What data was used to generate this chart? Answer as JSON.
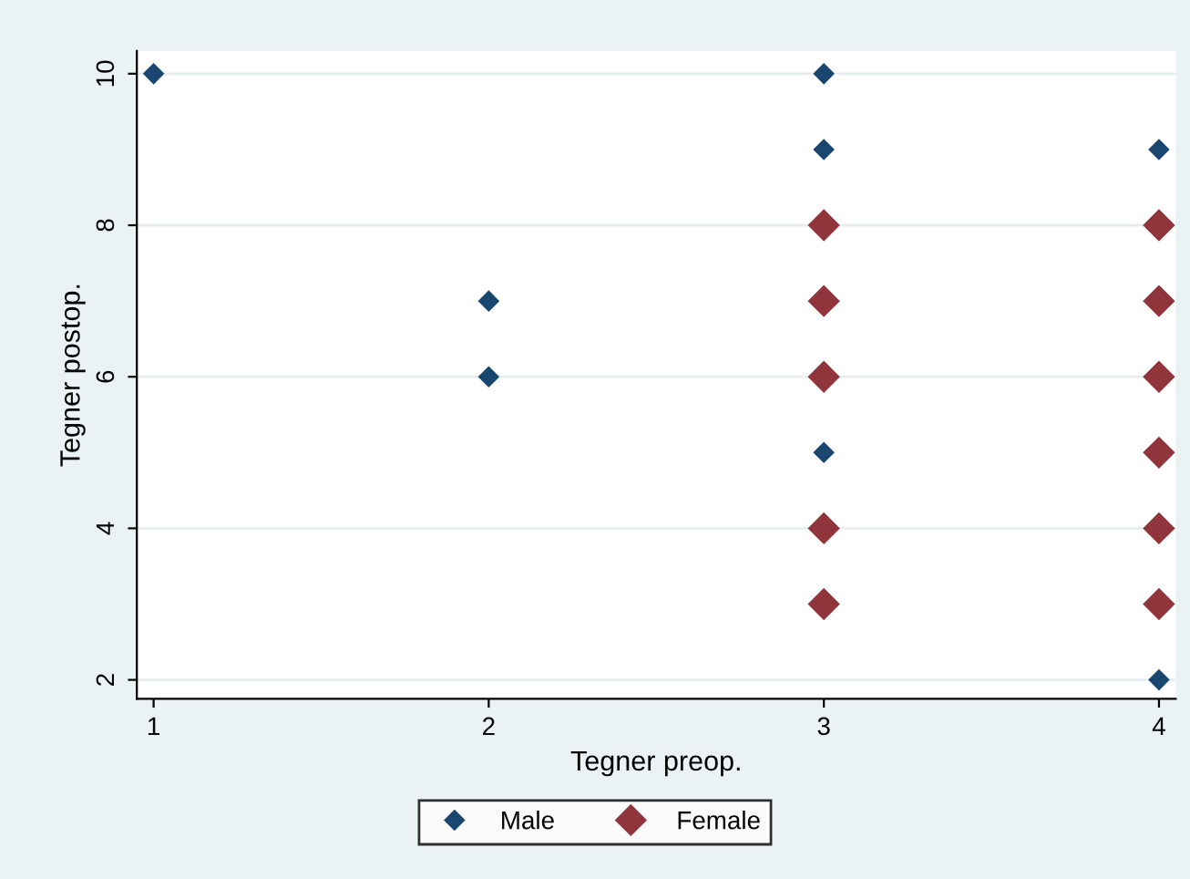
{
  "chart_data": {
    "type": "scatter",
    "xlabel": "Tegner preop.",
    "ylabel": "Tegner postop.",
    "xlim": [
      0.95,
      4.05
    ],
    "ylim": [
      1.75,
      10.3
    ],
    "xticks": [
      1,
      2,
      3,
      4
    ],
    "yticks": [
      2,
      4,
      6,
      8,
      10
    ],
    "grid": "y",
    "legend": "bottom",
    "marker": "diamond",
    "series": [
      {
        "name": "Male",
        "color": "#1a476f",
        "x": [
          1,
          2,
          2,
          3,
          3,
          3,
          4,
          4
        ],
        "values": [
          10,
          7,
          6,
          10,
          9,
          5,
          9,
          2
        ]
      },
      {
        "name": "Female",
        "color": "#90353b",
        "x": [
          3,
          3,
          3,
          3,
          3,
          4,
          4,
          4,
          4,
          4,
          4
        ],
        "values": [
          8,
          7,
          6,
          4,
          3,
          8,
          7,
          6,
          5,
          4,
          3
        ]
      }
    ]
  }
}
